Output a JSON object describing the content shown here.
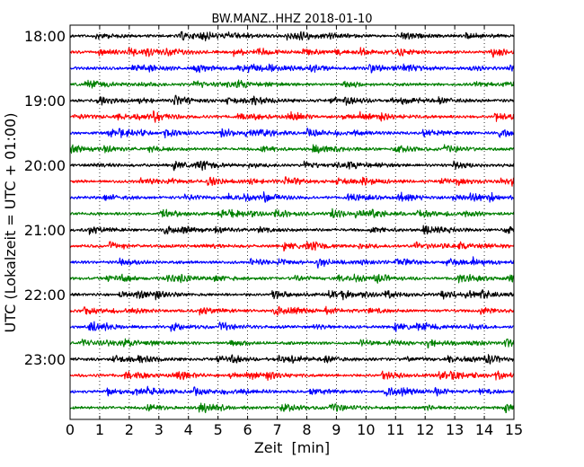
{
  "chart_data": {
    "type": "line",
    "title": "BW.MANZ..HHZ 2018-01-10",
    "xlabel": "Zeit  [min]",
    "ylabel": "UTC (Lokalzeit = UTC + 01:00)",
    "xlim": [
      0,
      15
    ],
    "x_ticks": [
      "0",
      "1",
      "2",
      "3",
      "4",
      "5",
      "6",
      "7",
      "8",
      "9",
      "10",
      "11",
      "12",
      "13",
      "14",
      "15"
    ],
    "y_ticks": [
      "18:00",
      "19:00",
      "20:00",
      "21:00",
      "22:00",
      "23:00"
    ],
    "grid": "vertical-dotted",
    "trace_colors": [
      "#000000",
      "#ff0000",
      "#0000ff",
      "#008000"
    ],
    "traces_per_hour": 4,
    "series": [
      {
        "start": "18:00"
      },
      {
        "start": "18:15"
      },
      {
        "start": "18:30"
      },
      {
        "start": "18:45"
      },
      {
        "start": "19:00"
      },
      {
        "start": "19:15"
      },
      {
        "start": "19:30"
      },
      {
        "start": "19:45"
      },
      {
        "start": "20:00"
      },
      {
        "start": "20:15"
      },
      {
        "start": "20:30"
      },
      {
        "start": "20:45"
      },
      {
        "start": "21:00"
      },
      {
        "start": "21:15"
      },
      {
        "start": "21:30"
      },
      {
        "start": "21:45"
      },
      {
        "start": "22:00"
      },
      {
        "start": "22:15"
      },
      {
        "start": "22:30"
      },
      {
        "start": "22:45"
      },
      {
        "start": "23:00"
      },
      {
        "start": "23:15"
      },
      {
        "start": "23:30"
      },
      {
        "start": "23:45"
      }
    ]
  }
}
